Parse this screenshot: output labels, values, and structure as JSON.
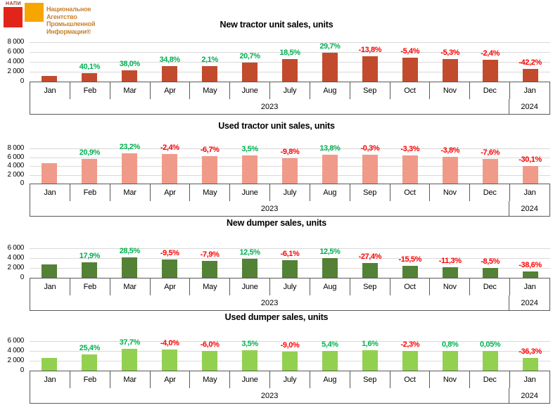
{
  "logo": {
    "abbr": "НАПИ",
    "lines": [
      "Национальное",
      "Агентство",
      "Промышленной",
      "Информации®"
    ],
    "red_square_color": "#E1251B",
    "orange_square_color": "#F7A600",
    "text_color": "#C9822F"
  },
  "colors": {
    "positive_label": "#00B050",
    "negative_label": "#FF0000",
    "gridline": "#D9D9D9",
    "axis_border": "#595959"
  },
  "chart_data": [
    {
      "type": "bar",
      "title": "New tractor unit sales, units",
      "bar_color": "#C24B2D",
      "ylim": [
        0,
        8000
      ],
      "y_ticks": [
        "8 000",
        "6 000",
        "4 000",
        "2 000",
        "0"
      ],
      "grid": true,
      "categories": [
        "Jan",
        "Feb",
        "Mar",
        "Apr",
        "May",
        "June",
        "July",
        "Aug",
        "Sep",
        "Oct",
        "Nov",
        "Dec",
        "Jan"
      ],
      "year_groups": [
        {
          "label": "2023",
          "span": 12
        },
        {
          "label": "2024",
          "span": 1
        }
      ],
      "values": [
        1200,
        1680,
        2320,
        3130,
        3190,
        3850,
        4570,
        5920,
        5110,
        4830,
        4570,
        4460,
        2580
      ],
      "pct_labels": [
        "",
        "40,1%",
        "38,0%",
        "34,8%",
        "2,1%",
        "20,7%",
        "18,5%",
        "29,7%",
        "-13,8%",
        "-5,4%",
        "-5,3%",
        "-2,4%",
        "-42,2%"
      ]
    },
    {
      "type": "bar",
      "title": "Used tractor unit sales, units",
      "bar_color": "#F09B89",
      "ylim": [
        0,
        8000
      ],
      "y_ticks": [
        "8 000",
        "6 000",
        "4 000",
        "2 000",
        "0"
      ],
      "grid": true,
      "categories": [
        "Jan",
        "Feb",
        "Mar",
        "Apr",
        "May",
        "June",
        "July",
        "Aug",
        "Sep",
        "Oct",
        "Nov",
        "Dec",
        "Jan"
      ],
      "year_groups": [
        {
          "label": "2023",
          "span": 12
        },
        {
          "label": "2024",
          "span": 1
        }
      ],
      "values": [
        4600,
        5560,
        6850,
        6690,
        6240,
        6460,
        5820,
        6630,
        6610,
        6390,
        6150,
        5680,
        3970
      ],
      "pct_labels": [
        "",
        "20,9%",
        "23,2%",
        "-2,4%",
        "-6,7%",
        "3,5%",
        "-9,8%",
        "13,8%",
        "-0,3%",
        "-3,3%",
        "-3,8%",
        "-7,6%",
        "-30,1%"
      ]
    },
    {
      "type": "bar",
      "title": "New dumper sales, units",
      "bar_color": "#538135",
      "ylim": [
        0,
        6000
      ],
      "y_ticks": [
        "6 000",
        "4 000",
        "2 000",
        "0"
      ],
      "grid": true,
      "categories": [
        "Jan",
        "Feb",
        "Mar",
        "Apr",
        "May",
        "June",
        "July",
        "Aug",
        "Sep",
        "Oct",
        "Nov",
        "Dec",
        "Jan"
      ],
      "year_groups": [
        {
          "label": "2023",
          "span": 12
        },
        {
          "label": "2024",
          "span": 1
        }
      ],
      "values": [
        2700,
        3180,
        4090,
        3700,
        3410,
        3830,
        3600,
        4050,
        2940,
        2490,
        2210,
        2020,
        1240
      ],
      "pct_labels": [
        "",
        "17,9%",
        "28,5%",
        "-9,5%",
        "-7,9%",
        "12,5%",
        "-6,1%",
        "12,5%",
        "-27,4%",
        "-15,5%",
        "-11,3%",
        "-8,5%",
        "-38,6%"
      ]
    },
    {
      "type": "bar",
      "title": "Used dumper sales, units",
      "bar_color": "#92D050",
      "ylim": [
        0,
        6000
      ],
      "y_ticks": [
        "6 000",
        "4 000",
        "2 000",
        "0"
      ],
      "grid": true,
      "categories": [
        "Jan",
        "Feb",
        "Mar",
        "Apr",
        "May",
        "June",
        "July",
        "Aug",
        "Sep",
        "Oct",
        "Nov",
        "Dec",
        "Jan"
      ],
      "year_groups": [
        {
          "label": "2023",
          "span": 12
        },
        {
          "label": "2024",
          "span": 1
        }
      ],
      "values": [
        2600,
        3260,
        4490,
        4310,
        4050,
        4190,
        3820,
        4020,
        4090,
        3990,
        4020,
        4030,
        2570
      ],
      "pct_labels": [
        "",
        "25,4%",
        "37,7%",
        "-4,0%",
        "-6,0%",
        "3,5%",
        "-9,0%",
        "5,4%",
        "1,6%",
        "-2,3%",
        "0,8%",
        "0,05%",
        "-36,3%"
      ]
    }
  ]
}
